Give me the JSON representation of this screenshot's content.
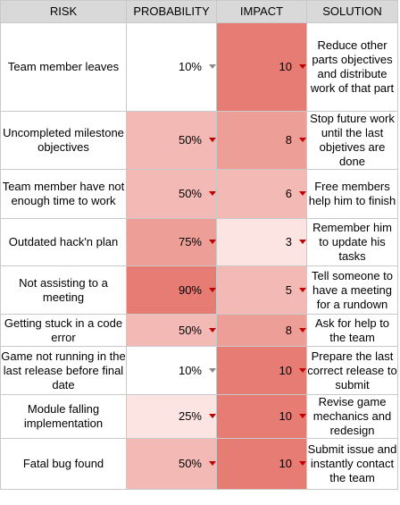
{
  "headers": {
    "risk": "RISK",
    "probability": "PROBABILITY",
    "impact": "IMPACT",
    "solution": "SOLUTION"
  },
  "colors": {
    "header_bg": "#d9d9d9",
    "white": "#ffffff",
    "very_light": "#fbe4e2",
    "light": "#f3bab5",
    "medium": "#ed9e97",
    "strong": "#e67c73",
    "arrow_red": "#c00000",
    "arrow_gray": "#8a8a8a"
  },
  "rows": [
    {
      "risk": "Team member leaves",
      "probability": "10%",
      "impact": "10",
      "solution": "Reduce other parts objectives and distribute work of that part",
      "prob_bg": "white",
      "prob_arrow": "gray",
      "imp_bg": "strong",
      "imp_arrow": "red"
    },
    {
      "risk": "Uncompleted milestone objectives",
      "probability": "50%",
      "impact": "8",
      "solution": "Stop future work until the last objetives are done",
      "prob_bg": "light",
      "prob_arrow": "red",
      "imp_bg": "medium",
      "imp_arrow": "red"
    },
    {
      "risk": "Team member have not enough time to work",
      "probability": "50%",
      "impact": "6",
      "solution": "Free members help him to finish",
      "prob_bg": "light",
      "prob_arrow": "red",
      "imp_bg": "light",
      "imp_arrow": "red"
    },
    {
      "risk": "Outdated hack'n plan",
      "probability": "75%",
      "impact": "3",
      "solution": "Remember him to update his tasks",
      "prob_bg": "medium",
      "prob_arrow": "red",
      "imp_bg": "very_light",
      "imp_arrow": "red"
    },
    {
      "risk": "Not assisting to a meeting",
      "probability": "90%",
      "impact": "5",
      "solution": "Tell someone to have a meeting for a rundown",
      "prob_bg": "strong",
      "prob_arrow": "red",
      "imp_bg": "light",
      "imp_arrow": "red"
    },
    {
      "risk": "Getting stuck in a code error",
      "probability": "50%",
      "impact": "8",
      "solution": "Ask for help to the team",
      "prob_bg": "light",
      "prob_arrow": "red",
      "imp_bg": "medium",
      "imp_arrow": "red"
    },
    {
      "risk": "Game not running in the last release before final date",
      "probability": "10%",
      "impact": "10",
      "solution": "Prepare the last correct release to submit",
      "prob_bg": "white",
      "prob_arrow": "gray",
      "imp_bg": "strong",
      "imp_arrow": "red"
    },
    {
      "risk": "Module falling implementation",
      "probability": "25%",
      "impact": "10",
      "solution": "Revise game mechanics and redesign",
      "prob_bg": "very_light",
      "prob_arrow": "red",
      "imp_bg": "strong",
      "imp_arrow": "red"
    },
    {
      "risk": "Fatal bug found",
      "probability": "50%",
      "impact": "10",
      "solution": "Submit issue and instantly contact the team",
      "prob_bg": "light",
      "prob_arrow": "red",
      "imp_bg": "strong",
      "imp_arrow": "red"
    }
  ]
}
